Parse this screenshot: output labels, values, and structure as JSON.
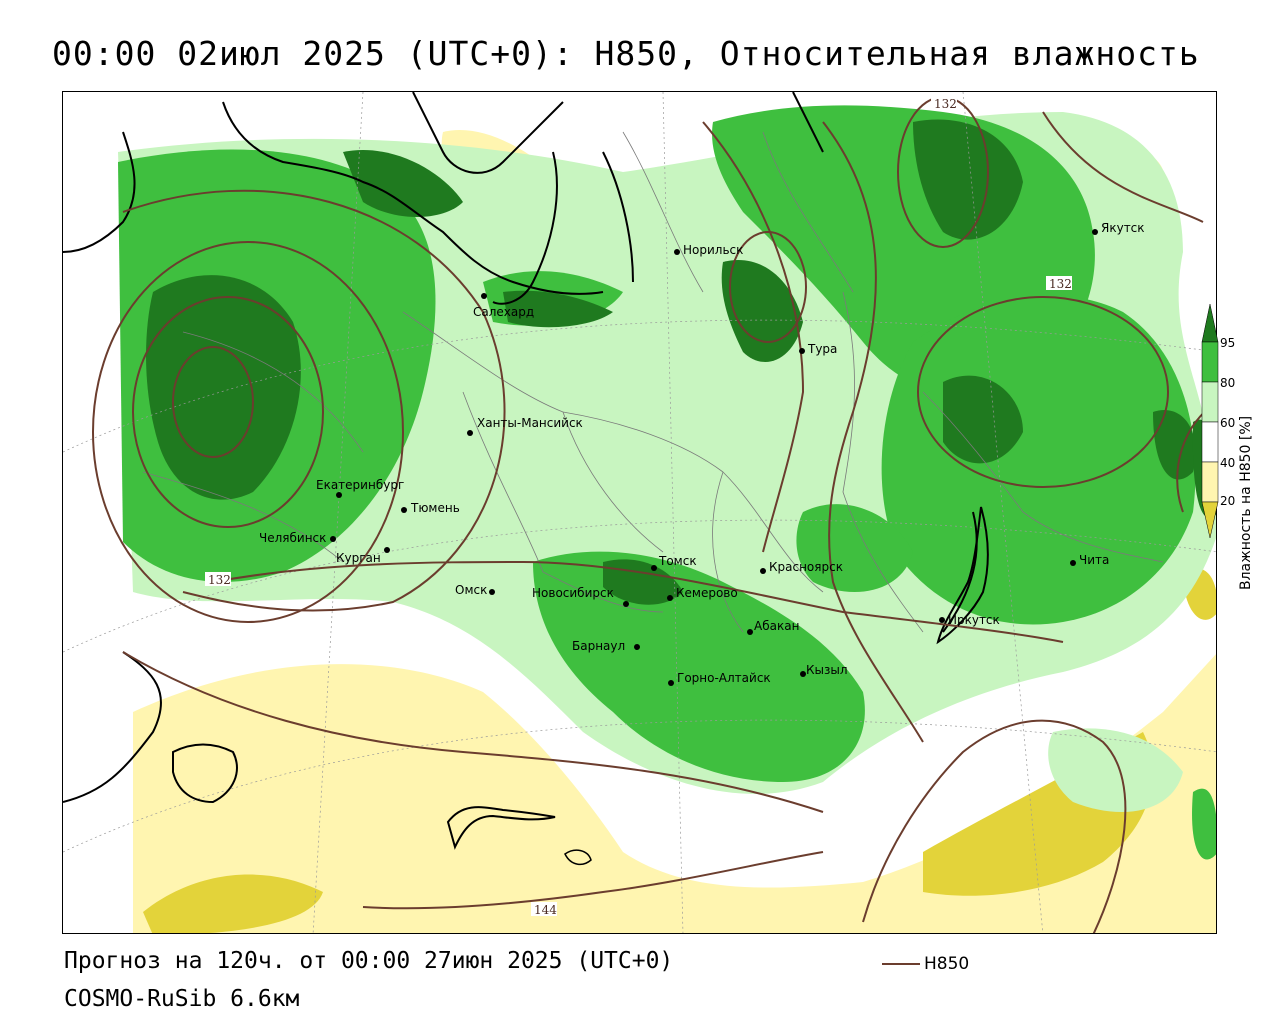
{
  "header": {
    "title": "00:00 02июл 2025 (UTC+0): H850, Относительная влажность"
  },
  "map": {
    "colors": {
      "rh_95": "#1f7a1f",
      "rh_80": "#3fbf3f",
      "rh_60": "#c8f5c0",
      "rh_40": "#ffffff",
      "rh_20": "#fff5b0",
      "rh_low": "#e3d33a",
      "contour": "#6b3d2e",
      "coast": "#000000"
    },
    "contour_labels": [
      "132",
      "132",
      "132",
      "144"
    ],
    "cities": [
      {
        "name": "Якутск"
      },
      {
        "name": "Норильск"
      },
      {
        "name": "Салехард"
      },
      {
        "name": "Тура"
      },
      {
        "name": "Ханты-Мансийск"
      },
      {
        "name": "Екатеринбург"
      },
      {
        "name": "Тюмень"
      },
      {
        "name": "Челябинск"
      },
      {
        "name": "Курган"
      },
      {
        "name": "Омск"
      },
      {
        "name": "Томск"
      },
      {
        "name": "Новосибирск"
      },
      {
        "name": "Кемерово"
      },
      {
        "name": "Красноярск"
      },
      {
        "name": "Абакан"
      },
      {
        "name": "Барнаул"
      },
      {
        "name": "Горно-Алтайск"
      },
      {
        "name": "Кызыл"
      },
      {
        "name": "Иркутск"
      },
      {
        "name": "Чита"
      }
    ]
  },
  "colorbar": {
    "title": "Влажность на H850 [%]",
    "ticks": [
      "95",
      "80",
      "60",
      "40",
      "20"
    ]
  },
  "footer": {
    "forecast": "Прогноз на 120ч. от 00:00 27июн 2025 (UTC+0)",
    "model": "COSMO-RuSib 6.6км",
    "legend_label": "H850"
  }
}
